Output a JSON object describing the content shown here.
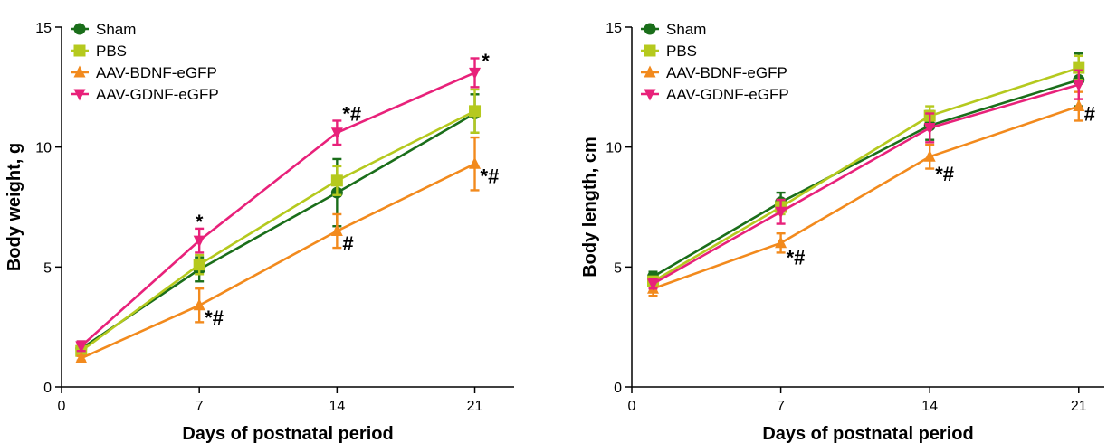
{
  "chart_data": [
    {
      "type": "line",
      "xlabel": "Days of postnatal period",
      "ylabel": "Body weight, g",
      "xlim": [
        0,
        23
      ],
      "ylim": [
        0,
        15
      ],
      "xticks": [
        "0",
        "7",
        "14",
        "21"
      ],
      "yticks": [
        "0",
        "5",
        "10",
        "15"
      ],
      "x": [
        1,
        7,
        14,
        21
      ],
      "legend_position": "top-left",
      "series": [
        {
          "name": "Sham",
          "color": "#1a6e1a",
          "marker": "circle",
          "values": [
            1.6,
            4.9,
            8.1,
            11.4
          ],
          "errors": [
            0.3,
            0.5,
            1.4,
            0.8
          ]
        },
        {
          "name": "PBS",
          "color": "#b5c91e",
          "marker": "square",
          "values": [
            1.5,
            5.1,
            8.6,
            11.5
          ],
          "errors": [
            0.2,
            0.4,
            0.6,
            0.9
          ]
        },
        {
          "name": "AAV-BDNF-eGFP",
          "color": "#f28a1d",
          "marker": "triangle-up",
          "values": [
            1.2,
            3.4,
            6.5,
            9.3
          ],
          "errors": [
            0.1,
            0.7,
            0.7,
            1.1
          ]
        },
        {
          "name": "AAV-GDNF-eGFP",
          "color": "#e8217a",
          "marker": "triangle-down",
          "values": [
            1.7,
            6.1,
            10.6,
            13.1
          ],
          "errors": [
            0.2,
            0.5,
            0.5,
            0.6
          ]
        }
      ],
      "annotations": [
        {
          "text": "*",
          "x": 7,
          "y": 6.9
        },
        {
          "text": "*#",
          "x": 14,
          "y": 11.4
        },
        {
          "text": "*",
          "x": 21,
          "y": 13.6
        },
        {
          "text": "#",
          "x": 14,
          "y": 6.0
        },
        {
          "text": "*#",
          "x": 7,
          "y": 2.9
        },
        {
          "text": "*#",
          "x": 21,
          "y": 8.8
        }
      ]
    },
    {
      "type": "line",
      "xlabel": "Days of postnatal period",
      "ylabel": "Body length, cm",
      "xlim": [
        0,
        22.2
      ],
      "ylim": [
        0,
        15
      ],
      "xticks": [
        "0",
        "7",
        "14",
        "21"
      ],
      "yticks": [
        "0",
        "5",
        "10",
        "15"
      ],
      "x": [
        1,
        7,
        14,
        21
      ],
      "legend_position": "top-left",
      "series": [
        {
          "name": "Sham",
          "color": "#1a6e1a",
          "marker": "circle",
          "values": [
            4.6,
            7.7,
            10.9,
            12.8
          ],
          "errors": [
            0.2,
            0.4,
            0.6,
            1.1
          ]
        },
        {
          "name": "PBS",
          "color": "#b5c91e",
          "marker": "square",
          "values": [
            4.4,
            7.5,
            11.3,
            13.3
          ],
          "errors": [
            0.2,
            0.3,
            0.4,
            0.5
          ]
        },
        {
          "name": "AAV-BDNF-eGFP",
          "color": "#f28a1d",
          "marker": "triangle-up",
          "values": [
            4.1,
            6.0,
            9.6,
            11.7
          ],
          "errors": [
            0.3,
            0.4,
            0.5,
            0.6
          ]
        },
        {
          "name": "AAV-GDNF-eGFP",
          "color": "#e8217a",
          "marker": "triangle-down",
          "values": [
            4.3,
            7.3,
            10.8,
            12.6
          ],
          "errors": [
            0.2,
            0.5,
            0.6,
            0.6
          ]
        }
      ],
      "annotations": [
        {
          "text": "*#",
          "x": 7,
          "y": 5.4
        },
        {
          "text": "*#",
          "x": 14,
          "y": 8.9
        },
        {
          "text": "#",
          "x": 21,
          "y": 11.4
        }
      ]
    }
  ]
}
